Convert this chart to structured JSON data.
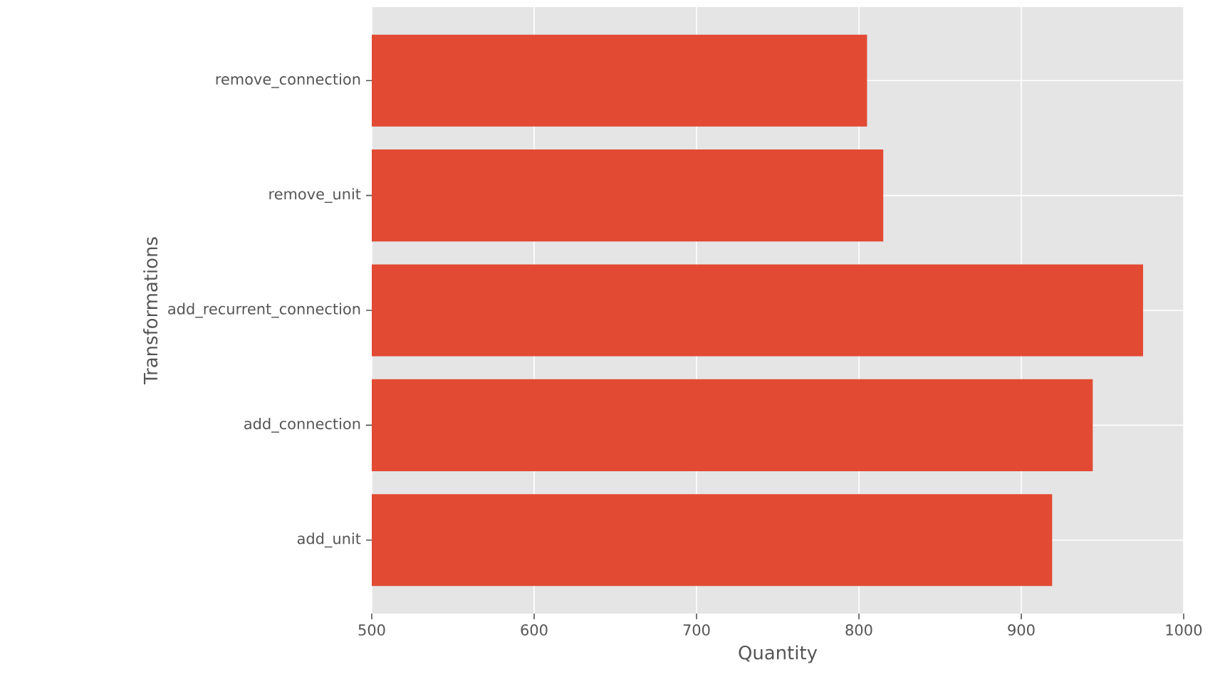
{
  "chart_data": {
    "type": "bar",
    "orientation": "horizontal",
    "xlabel": "Quantity",
    "ylabel": "Transformations",
    "categories": [
      "remove_connection",
      "remove_unit",
      "add_recurrent_connection",
      "add_connection",
      "add_unit"
    ],
    "values": [
      805,
      815,
      975,
      944,
      919
    ],
    "color": "#e24a33",
    "xlim": [
      500,
      1000
    ],
    "xticks": [
      500,
      600,
      700,
      800,
      900,
      1000
    ],
    "grid": true
  }
}
